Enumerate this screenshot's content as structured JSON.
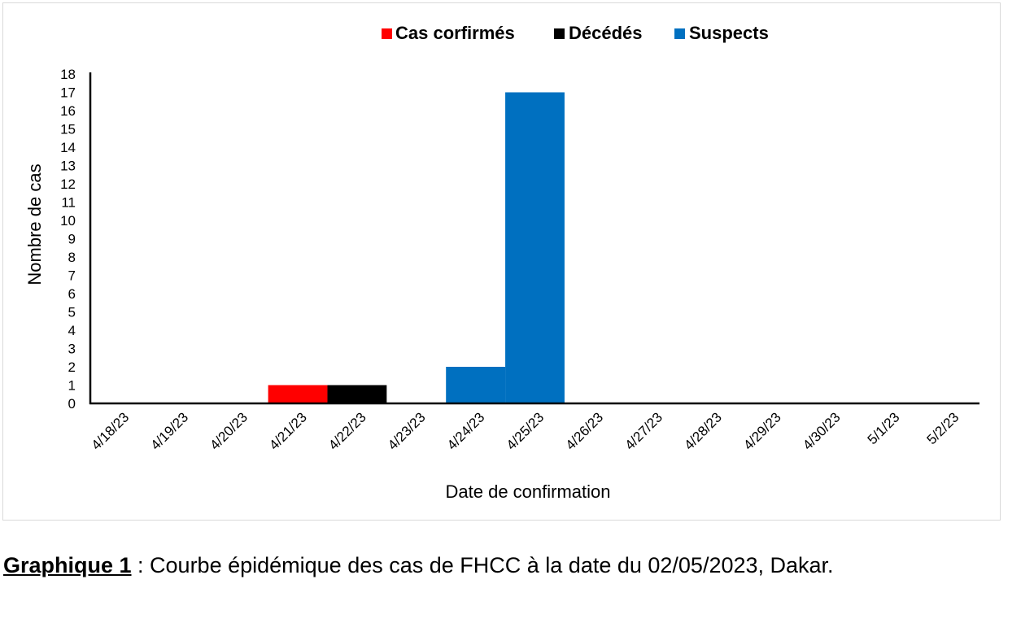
{
  "chart_data": {
    "type": "bar",
    "title": "",
    "xlabel": "Date de confirmation",
    "ylabel": "Nombre de cas",
    "ylim": [
      0,
      18
    ],
    "yticks": [
      0,
      1,
      2,
      3,
      4,
      5,
      6,
      7,
      8,
      9,
      10,
      11,
      12,
      13,
      14,
      15,
      16,
      17,
      18
    ],
    "grid": false,
    "legend_position": "top",
    "categories": [
      "4/18/23",
      "4/19/23",
      "4/20/23",
      "4/21/23",
      "4/22/23",
      "4/23/23",
      "4/24/23",
      "4/25/23",
      "4/26/23",
      "4/27/23",
      "4/28/23",
      "4/29/23",
      "4/30/23",
      "5/1/23",
      "5/2/23"
    ],
    "series": [
      {
        "name": "Cas corfirmés",
        "color": "#ff0000",
        "values": [
          0,
          0,
          0,
          1,
          0,
          0,
          0,
          0,
          0,
          0,
          0,
          0,
          0,
          0,
          0
        ]
      },
      {
        "name": "Décédés",
        "color": "#000000",
        "values": [
          0,
          0,
          0,
          0,
          1,
          0,
          0,
          0,
          0,
          0,
          0,
          0,
          0,
          0,
          0
        ]
      },
      {
        "name": "Suspects",
        "color": "#0070c0",
        "values": [
          0,
          0,
          0,
          0,
          0,
          0,
          2,
          17,
          0,
          0,
          0,
          0,
          0,
          0,
          0
        ]
      }
    ]
  },
  "caption": {
    "label": "Graphique 1",
    "text": " : Courbe épidémique des cas de FHCC à la date du 02/05/2023, Dakar."
  }
}
